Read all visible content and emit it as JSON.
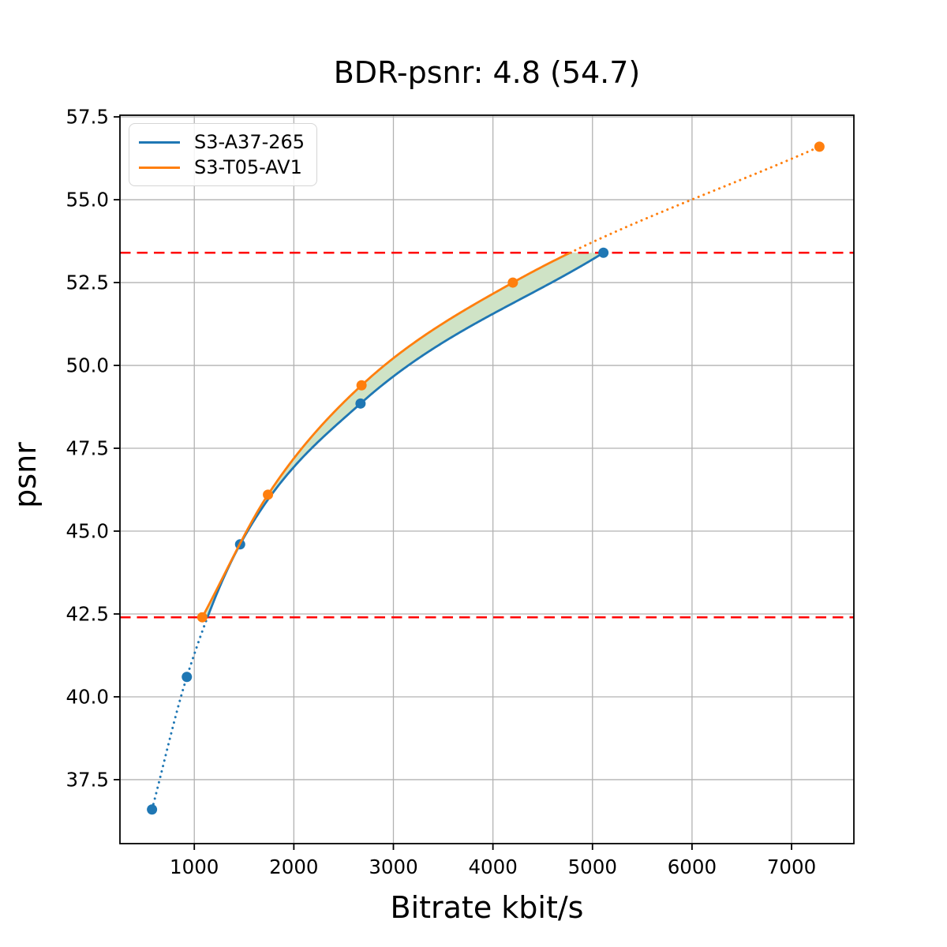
{
  "chart_data": {
    "type": "line",
    "title": "BDR-psnr: 4.8 (54.7)",
    "xlabel": "Bitrate kbit/s",
    "ylabel": "psnr",
    "xlim": [
      253,
      7626
    ],
    "ylim": [
      35.57,
      57.55
    ],
    "grid": true,
    "legend_position": "upper left",
    "x_ticks": {
      "values": [
        1000,
        2000,
        3000,
        4000,
        5000,
        6000,
        7000
      ],
      "labels": [
        "1000",
        "2000",
        "3000",
        "4000",
        "5000",
        "6000",
        "7000"
      ]
    },
    "y_ticks": {
      "values": [
        37.5,
        40.0,
        42.5,
        45.0,
        47.5,
        50.0,
        52.5,
        55.0,
        57.5
      ],
      "labels": [
        "37.5",
        "40.0",
        "42.5",
        "45.0",
        "47.5",
        "50.0",
        "52.5",
        "55.0",
        "57.5"
      ]
    },
    "series": [
      {
        "name": "S3-A37-265",
        "color": "#1f77b4",
        "points": [
          [
            575,
            36.6
          ],
          [
            925,
            40.6
          ],
          [
            1460,
            44.6
          ],
          [
            2670,
            48.85
          ],
          [
            5110,
            53.4
          ]
        ],
        "line_style": "solid inside BD overlap, dotted extrapolation outside"
      },
      {
        "name": "S3-T05-AV1",
        "color": "#ff7f0e",
        "points": [
          [
            1080,
            42.4
          ],
          [
            1740,
            46.1
          ],
          [
            2680,
            49.4
          ],
          [
            4200,
            52.5
          ],
          [
            7280,
            56.6
          ]
        ],
        "line_style": "solid inside BD overlap, dotted extrapolation outside"
      }
    ],
    "bd_lines": {
      "low": 42.4,
      "high": 53.4,
      "color": "#ff0000",
      "style": "dashed"
    },
    "fill_between": {
      "color": "#cfe3c6",
      "description": "area between the two rate curves within BD psnr overlap [42.4, 53.4]"
    },
    "grid_color": "#b2b2b2",
    "spine_color": "#000000",
    "tick_label_color": "#000000"
  }
}
